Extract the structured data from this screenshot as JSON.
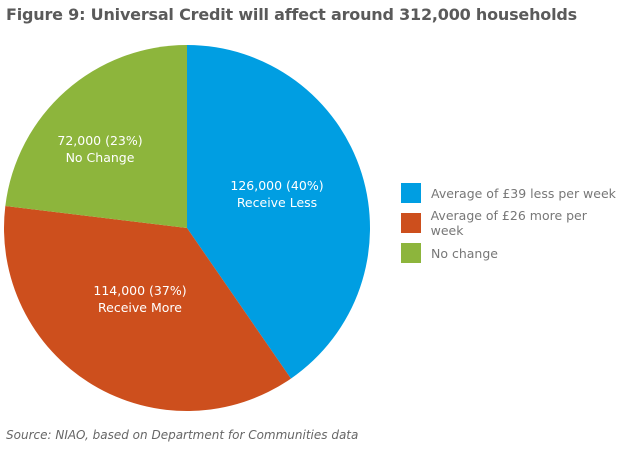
{
  "title": "Figure 9: Universal Credit will affect around 312,000 households",
  "source": "Source: NIAO, based on Department for Communities data",
  "chart_data": {
    "type": "pie",
    "title": "Figure 9: Universal Credit will affect around 312,000 households",
    "legend_position": "right",
    "slices": [
      {
        "name": "Average of £39 less per week",
        "value": 126000,
        "percent": 40,
        "label_line1": "126,000 (40%)",
        "label_line2": "Receive Less",
        "color": "#009ee2"
      },
      {
        "name": "Average of £26 more per week",
        "value": 114000,
        "percent": 37,
        "label_line1": "114,000 (37%)",
        "label_line2": "Receive More",
        "color": "#cd4f1d"
      },
      {
        "name": "No change",
        "value": 72000,
        "percent": 23,
        "label_line1": "72,000 (23%)",
        "label_line2": "No Change",
        "color": "#8db53c"
      }
    ]
  }
}
